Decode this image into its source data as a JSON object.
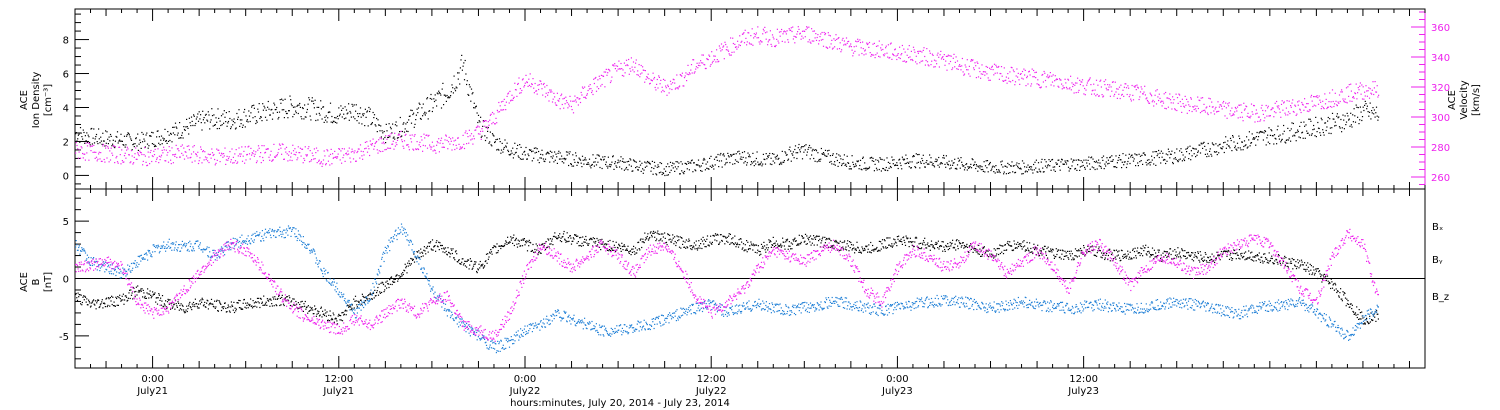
{
  "colors": {
    "density": "#000000",
    "velocity": "#ee22ee",
    "bx": "#000000",
    "by": "#1f7fd6",
    "bz": "#ee22ee",
    "axis": "#000000"
  },
  "chart_data": [
    {
      "type": "scatter",
      "panel": "top",
      "ylabel_lines": [
        "ACE",
        "Ion Density",
        "[cm⁻³]"
      ],
      "ylabel2_lines": [
        "ACE",
        "Velocity",
        "[km/s]"
      ],
      "ylim": [
        -0.8,
        9.8
      ],
      "y2lim": [
        252,
        372
      ],
      "yticks": [
        0,
        2,
        4,
        6,
        8
      ],
      "y2ticks": [
        260,
        280,
        300,
        320,
        340,
        360
      ],
      "series": [
        {
          "key": "density",
          "axis": "left",
          "x": [
            -5,
            -4,
            -3,
            -2,
            -1,
            0,
            1,
            2,
            3,
            4,
            5,
            6,
            7,
            8,
            9,
            10,
            11,
            12,
            13,
            14,
            15,
            16,
            17,
            18,
            19,
            20,
            21,
            22,
            23,
            24,
            25,
            26,
            27,
            28,
            29,
            30,
            31,
            32,
            33,
            34,
            35,
            36,
            37,
            38,
            39,
            40,
            41,
            42,
            43,
            44,
            45,
            46,
            47,
            48,
            49,
            50,
            51,
            52,
            53,
            54,
            55,
            56,
            57,
            58,
            59,
            60,
            61,
            62,
            63,
            64,
            65,
            66,
            67,
            68,
            69,
            70,
            71,
            72,
            73,
            74,
            75,
            76,
            77,
            78,
            79
          ],
          "y": [
            2.5,
            2.3,
            2.2,
            2.1,
            2.0,
            2.2,
            2.5,
            2.8,
            3.2,
            3.4,
            3.3,
            3.5,
            3.7,
            3.9,
            4.1,
            4.0,
            3.8,
            3.6,
            3.9,
            3.4,
            2.5,
            2.9,
            3.6,
            4.2,
            5.0,
            6.5,
            3.0,
            2.0,
            1.6,
            1.3,
            1.2,
            1.1,
            1.0,
            0.9,
            0.8,
            0.8,
            0.6,
            0.5,
            0.4,
            0.5,
            0.6,
            0.8,
            1.0,
            1.1,
            1.0,
            0.9,
            1.3,
            1.5,
            1.2,
            1.0,
            0.8,
            0.7,
            0.7,
            0.8,
            0.9,
            0.9,
            0.8,
            0.7,
            0.6,
            0.5,
            0.5,
            0.5,
            0.6,
            0.6,
            0.7,
            0.7,
            0.8,
            0.9,
            0.9,
            1.0,
            1.1,
            1.2,
            1.4,
            1.6,
            1.8,
            2.0,
            2.2,
            2.4,
            2.5,
            2.7,
            2.9,
            3.1,
            3.3,
            3.8,
            3.6
          ]
        },
        {
          "key": "velocity",
          "axis": "right",
          "x": [
            -5,
            -4,
            -3,
            -2,
            -1,
            0,
            1,
            2,
            3,
            4,
            5,
            6,
            7,
            8,
            9,
            10,
            11,
            12,
            13,
            14,
            15,
            16,
            17,
            18,
            19,
            20,
            21,
            22,
            23,
            24,
            25,
            26,
            27,
            28,
            29,
            30,
            31,
            32,
            33,
            34,
            35,
            36,
            37,
            38,
            39,
            40,
            41,
            42,
            43,
            44,
            45,
            46,
            47,
            48,
            49,
            50,
            51,
            52,
            53,
            54,
            55,
            56,
            57,
            58,
            59,
            60,
            61,
            62,
            63,
            64,
            65,
            66,
            67,
            68,
            69,
            70,
            71,
            72,
            73,
            74,
            75,
            76,
            77,
            78,
            79
          ],
          "y": [
            278,
            277,
            276,
            275,
            274,
            274,
            275,
            276,
            275,
            274,
            274,
            275,
            276,
            277,
            276,
            275,
            273,
            274,
            276,
            280,
            283,
            285,
            284,
            282,
            283,
            285,
            290,
            300,
            315,
            325,
            320,
            312,
            308,
            318,
            325,
            332,
            336,
            325,
            320,
            325,
            335,
            340,
            346,
            352,
            355,
            353,
            354,
            356,
            354,
            350,
            347,
            346,
            345,
            343,
            342,
            340,
            338,
            335,
            332,
            330,
            328,
            327,
            326,
            325,
            323,
            321,
            320,
            318,
            317,
            315,
            312,
            310,
            308,
            307,
            305,
            304,
            303,
            304,
            306,
            308,
            310,
            313,
            316,
            318,
            319
          ]
        }
      ]
    },
    {
      "type": "line",
      "panel": "bottom",
      "ylabel_lines": [
        "ACE",
        "B",
        "[nT]"
      ],
      "ylim": [
        -7.8,
        7.8
      ],
      "yticks": [
        -5,
        0,
        5
      ],
      "zero_line": true,
      "series": [
        {
          "key": "bx",
          "legend": "Bₓ",
          "x": [
            -5,
            -4,
            -3,
            -2,
            -1,
            0,
            1,
            2,
            3,
            4,
            5,
            6,
            7,
            8,
            9,
            10,
            11,
            12,
            13,
            14,
            15,
            16,
            17,
            18,
            19,
            20,
            21,
            22,
            23,
            24,
            25,
            26,
            27,
            28,
            29,
            30,
            31,
            32,
            33,
            34,
            35,
            36,
            37,
            38,
            39,
            40,
            41,
            42,
            43,
            44,
            45,
            46,
            47,
            48,
            49,
            50,
            51,
            52,
            53,
            54,
            55,
            56,
            57,
            58,
            59,
            60,
            61,
            62,
            63,
            64,
            65,
            66,
            67,
            68,
            69,
            70,
            71,
            72,
            73,
            74,
            75,
            76,
            77,
            78,
            79
          ],
          "y": [
            -1.5,
            -2.2,
            -2.0,
            -1.8,
            -1.0,
            -1.5,
            -2.2,
            -2.5,
            -2.0,
            -2.3,
            -2.5,
            -2.2,
            -2.0,
            -1.8,
            -2.0,
            -2.5,
            -3.0,
            -3.5,
            -2.0,
            -1.5,
            -0.5,
            0.5,
            2.0,
            3.0,
            2.5,
            1.5,
            1.0,
            2.5,
            3.5,
            3.0,
            2.5,
            3.8,
            3.5,
            3.2,
            3.0,
            2.8,
            2.5,
            4.0,
            3.5,
            3.2,
            3.0,
            3.4,
            3.6,
            3.0,
            2.5,
            3.2,
            3.0,
            3.5,
            3.3,
            3.0,
            2.8,
            2.6,
            3.0,
            3.4,
            3.2,
            3.0,
            2.8,
            3.1,
            2.5,
            2.2,
            2.8,
            3.0,
            2.5,
            2.2,
            2.0,
            2.5,
            2.3,
            2.0,
            2.2,
            2.5,
            2.0,
            2.3,
            2.0,
            1.8,
            2.0,
            2.2,
            2.0,
            1.8,
            1.5,
            1.2,
            0.5,
            -0.5,
            -2.0,
            -3.5,
            -3.2
          ]
        },
        {
          "key": "by",
          "legend": "Bᵧ",
          "x": [
            -5,
            -4,
            -3,
            -2,
            -1,
            0,
            1,
            2,
            3,
            4,
            5,
            6,
            7,
            8,
            9,
            10,
            11,
            12,
            13,
            14,
            15,
            16,
            17,
            18,
            19,
            20,
            21,
            22,
            23,
            24,
            25,
            26,
            27,
            28,
            29,
            30,
            31,
            32,
            33,
            34,
            35,
            36,
            37,
            38,
            39,
            40,
            41,
            42,
            43,
            44,
            45,
            46,
            47,
            48,
            49,
            50,
            51,
            52,
            53,
            54,
            55,
            56,
            57,
            58,
            59,
            60,
            61,
            62,
            63,
            64,
            65,
            66,
            67,
            68,
            69,
            70,
            71,
            72,
            73,
            74,
            75,
            76,
            77,
            78,
            79
          ],
          "y": [
            3.0,
            1.5,
            1.0,
            0.5,
            1.5,
            2.5,
            3.0,
            2.8,
            3.0,
            2.0,
            3.0,
            3.5,
            3.8,
            4.0,
            4.2,
            3.0,
            0.5,
            -1.0,
            -3.0,
            -1.5,
            2.5,
            4.5,
            2.0,
            -1.0,
            -3.0,
            -4.0,
            -5.0,
            -6.0,
            -5.5,
            -4.5,
            -4.0,
            -3.0,
            -3.5,
            -4.0,
            -4.5,
            -4.5,
            -4.2,
            -4.0,
            -3.5,
            -3.0,
            -2.5,
            -2.2,
            -3.0,
            -2.5,
            -2.2,
            -2.5,
            -2.8,
            -2.5,
            -2.2,
            -2.0,
            -2.2,
            -2.5,
            -2.8,
            -2.4,
            -2.2,
            -2.0,
            -1.8,
            -2.0,
            -2.2,
            -2.5,
            -2.3,
            -2.0,
            -2.2,
            -2.4,
            -2.6,
            -2.4,
            -2.2,
            -2.5,
            -2.7,
            -2.5,
            -2.2,
            -2.0,
            -2.2,
            -2.5,
            -2.8,
            -3.0,
            -2.6,
            -2.4,
            -2.2,
            -2.0,
            -3.0,
            -4.0,
            -5.0,
            -3.5,
            -2.5
          ]
        },
        {
          "key": "bz",
          "legend": "B_z",
          "x": [
            -5,
            -4,
            -3,
            -2,
            -1,
            0,
            1,
            2,
            3,
            4,
            5,
            6,
            7,
            8,
            9,
            10,
            11,
            12,
            13,
            14,
            15,
            16,
            17,
            18,
            19,
            20,
            21,
            22,
            23,
            24,
            25,
            26,
            27,
            28,
            29,
            30,
            31,
            32,
            33,
            34,
            35,
            36,
            37,
            38,
            39,
            40,
            41,
            42,
            43,
            44,
            45,
            46,
            47,
            48,
            49,
            50,
            51,
            52,
            53,
            54,
            55,
            56,
            57,
            58,
            59,
            60,
            61,
            62,
            63,
            64,
            65,
            66,
            67,
            68,
            69,
            70,
            71,
            72,
            73,
            74,
            75,
            76,
            77,
            78,
            79
          ],
          "y": [
            1.0,
            1.2,
            1.5,
            1.0,
            -2.0,
            -3.0,
            -2.5,
            -1.0,
            0.5,
            2.0,
            3.0,
            2.5,
            1.0,
            -1.0,
            -2.5,
            -3.5,
            -4.0,
            -4.5,
            -3.5,
            -4.0,
            -3.0,
            -2.0,
            -3.0,
            -2.0,
            -1.5,
            -4.0,
            -4.5,
            -5.0,
            -3.0,
            0.5,
            3.0,
            2.0,
            1.0,
            2.0,
            3.0,
            2.0,
            0.5,
            2.5,
            3.0,
            1.0,
            -1.5,
            -3.0,
            -2.0,
            -1.0,
            1.0,
            2.5,
            2.0,
            1.5,
            2.5,
            3.0,
            1.5,
            -1.0,
            -2.0,
            1.0,
            2.5,
            2.0,
            1.0,
            1.5,
            3.0,
            2.0,
            0.5,
            1.5,
            2.5,
            1.0,
            -1.0,
            2.5,
            3.0,
            1.5,
            -0.5,
            1.0,
            2.0,
            1.5,
            0.5,
            1.0,
            2.5,
            3.0,
            3.5,
            3.0,
            1.0,
            -1.0,
            -2.0,
            2.0,
            4.0,
            3.0,
            -2.0
          ]
        }
      ]
    }
  ],
  "x_axis": {
    "xlim": [
      -5.0,
      82.0
    ],
    "tick_positions_hours": [
      0,
      12,
      24,
      36,
      48,
      60
    ],
    "tick_labels_time": [
      "0:00",
      "12:00",
      "0:00",
      "12:00",
      "0:00",
      "12:00"
    ],
    "tick_labels_date": [
      "July21",
      "July21",
      "July22",
      "July22",
      "July23",
      "July23"
    ],
    "title": "hours:minutes, July 20, 2014 - July 23, 2014"
  }
}
